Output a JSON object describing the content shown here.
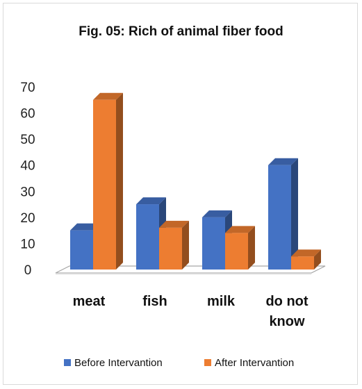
{
  "chart_data": {
    "type": "bar",
    "title": "Fig. 05: Rich of animal fiber food",
    "xlabel": "",
    "ylabel": "",
    "categories": [
      [
        "meat"
      ],
      [
        "fish"
      ],
      [
        "milk"
      ],
      [
        "do not",
        "know"
      ]
    ],
    "ylim": [
      0,
      70
    ],
    "yticks": [
      0,
      10,
      20,
      30,
      40,
      50,
      60,
      70
    ],
    "grid": false,
    "legend_position": "bottom",
    "style": "3d-clustered-column",
    "series": [
      {
        "name": "Before Intervantion",
        "color": "#4472C4",
        "values": [
          15,
          25,
          20,
          40
        ]
      },
      {
        "name": "After Intervantion",
        "color": "#ED7D31",
        "values": [
          65,
          16,
          14,
          5
        ]
      }
    ]
  }
}
